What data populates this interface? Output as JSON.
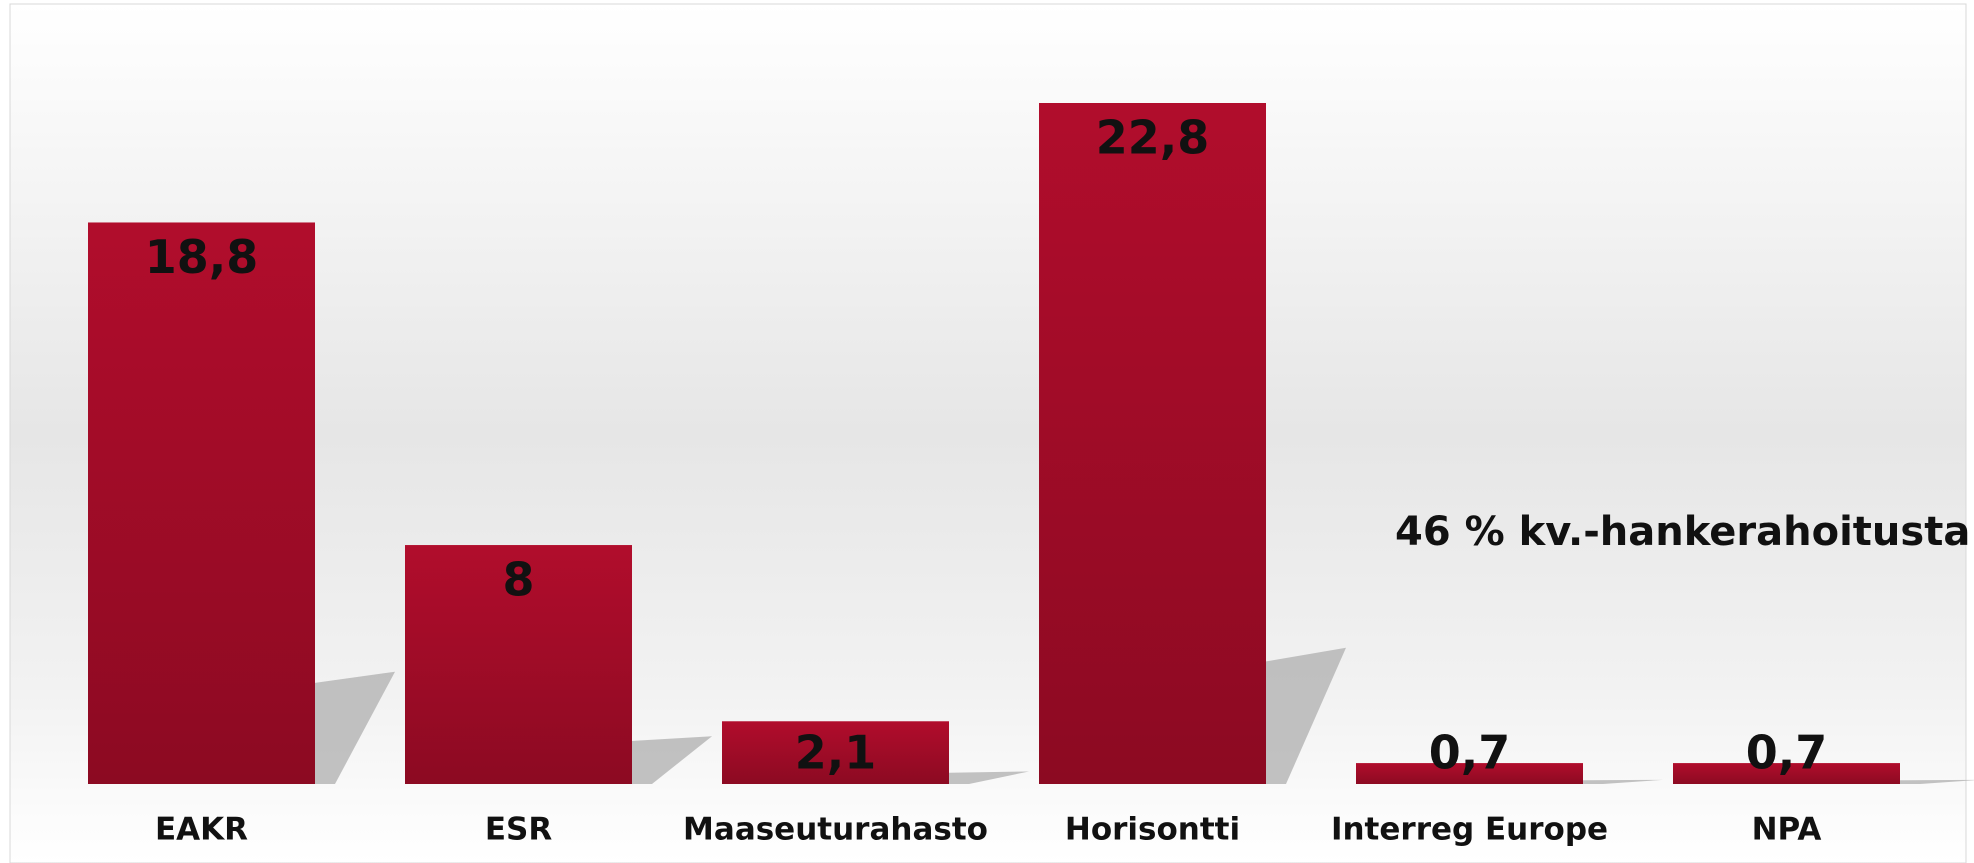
{
  "chart_data": {
    "type": "bar",
    "categories": [
      "EAKR",
      "ESR",
      "Maaseuturahasto",
      "Horisontti",
      "Interreg Europe",
      "NPA"
    ],
    "values": [
      18.8,
      8,
      2.1,
      22.8,
      0.7,
      0.7
    ],
    "value_labels": [
      "18,8",
      "8",
      "2,1",
      "22,8",
      "0,7",
      "0,7"
    ],
    "color": "#a80c2a",
    "annotation": "46 % kv.-hankerahoitusta"
  }
}
